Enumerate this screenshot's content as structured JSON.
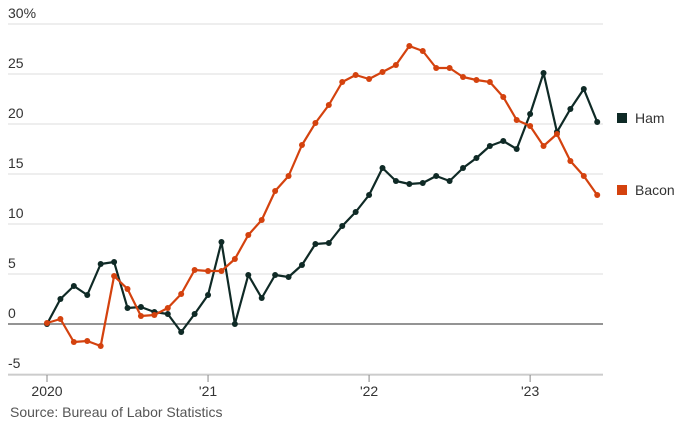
{
  "chart_data": {
    "type": "line",
    "y_ticks": [
      {
        "value": 30,
        "label": "30%"
      },
      {
        "value": 25,
        "label": "25"
      },
      {
        "value": 20,
        "label": "20"
      },
      {
        "value": 15,
        "label": "15"
      },
      {
        "value": 10,
        "label": "10"
      },
      {
        "value": 5,
        "label": "5"
      },
      {
        "value": 0,
        "label": "0"
      },
      {
        "value": -5,
        "label": "-5"
      }
    ],
    "x_ticks": [
      {
        "value": 0,
        "label": "2020"
      },
      {
        "value": 12,
        "label": "'21"
      },
      {
        "value": 24,
        "label": "'22"
      },
      {
        "value": 36,
        "label": "'23"
      }
    ],
    "x_unit": "months since Jan 2020",
    "ylim": [
      -5,
      30
    ],
    "xlim": [
      0,
      41
    ],
    "grid": true,
    "series": [
      {
        "name": "Ham",
        "color": "#0f2a26",
        "values": [
          0,
          2.5,
          3.8,
          2.9,
          6.0,
          6.2,
          1.6,
          1.7,
          1.2,
          1.0,
          -0.8,
          1.0,
          2.9,
          8.2,
          0.0,
          4.9,
          2.6,
          4.9,
          4.7,
          5.9,
          8.0,
          8.1,
          9.8,
          11.2,
          12.9,
          15.6,
          14.3,
          14.0,
          14.1,
          14.8,
          14.3,
          15.6,
          16.6,
          17.8,
          18.3,
          17.5,
          21.0,
          25.1,
          19.2,
          21.5,
          23.5,
          20.2
        ]
      },
      {
        "name": "Bacon",
        "color": "#d4420e",
        "values": [
          0.1,
          0.5,
          -1.8,
          -1.7,
          -2.2,
          4.8,
          3.5,
          0.8,
          0.9,
          1.6,
          3.0,
          5.4,
          5.3,
          5.3,
          6.5,
          8.9,
          10.4,
          13.3,
          14.8,
          17.9,
          20.1,
          21.9,
          24.2,
          24.9,
          24.5,
          25.2,
          25.9,
          27.8,
          27.3,
          25.6,
          25.6,
          24.7,
          24.4,
          24.2,
          22.7,
          20.4,
          19.8,
          17.8,
          19.0,
          16.3,
          14.8,
          12.9
        ]
      }
    ],
    "legend_placement": "right"
  },
  "source": "Source: Bureau of Labor Statistics"
}
